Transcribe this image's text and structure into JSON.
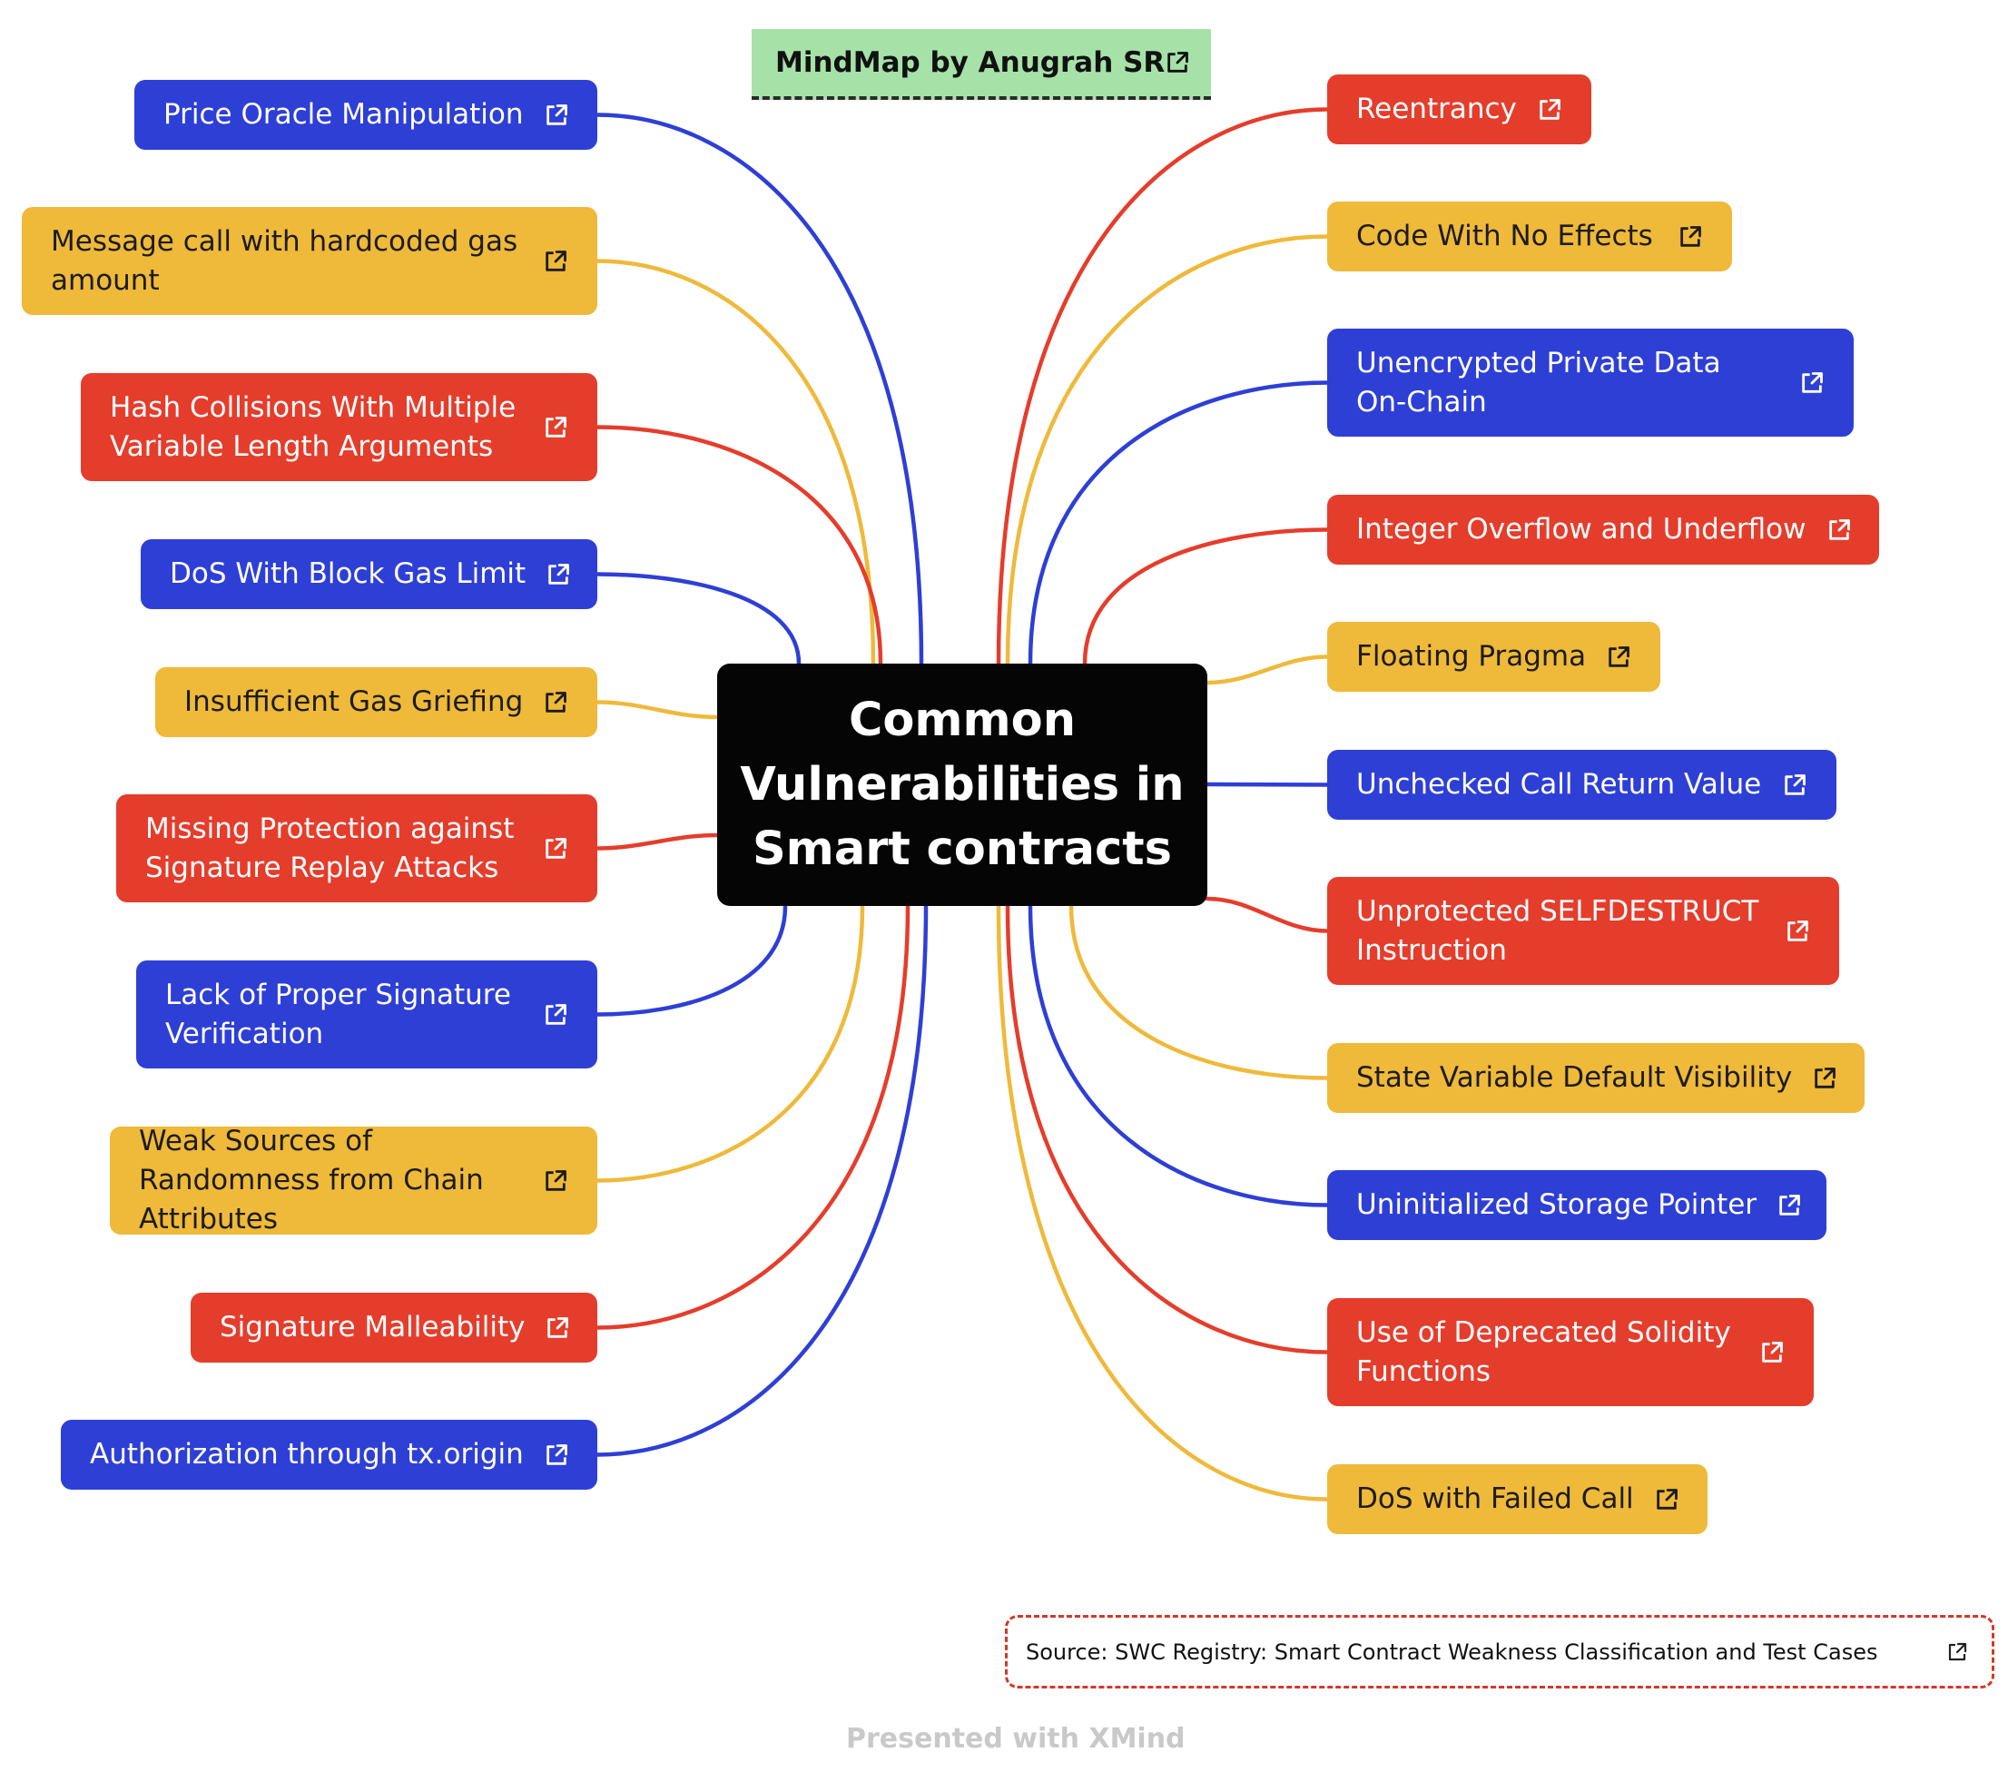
{
  "colors": {
    "blue": "#2e3fd6",
    "red": "#e53d2c",
    "yellow": "#efb93a",
    "center": "#050505",
    "credit_bg": "#a6e2a8"
  },
  "icons": {
    "node_link": "external-link-icon"
  },
  "credit": {
    "label": "MindMap by Anugrah SR"
  },
  "central_topic": {
    "label": "Common Vulnerabilities in Smart contracts"
  },
  "left_nodes": [
    {
      "label": "Price Oracle Manipulation",
      "color": "blue"
    },
    {
      "label": "Message call with hardcoded gas amount",
      "color": "yellow"
    },
    {
      "label": "Hash Collisions With Multiple Variable Length Arguments",
      "color": "red"
    },
    {
      "label": "DoS With Block Gas Limit",
      "color": "blue"
    },
    {
      "label": "Insufficient Gas Griefing",
      "color": "yellow"
    },
    {
      "label": "Missing Protection against Signature Replay Attacks",
      "color": "red"
    },
    {
      "label": "Lack of Proper Signature Verification",
      "color": "blue"
    },
    {
      "label": "Weak Sources of Randomness from Chain Attributes",
      "color": "yellow"
    },
    {
      "label": "Signature Malleability",
      "color": "red"
    },
    {
      "label": "Authorization through tx.origin",
      "color": "blue"
    }
  ],
  "right_nodes": [
    {
      "label": "Reentrancy",
      "color": "red"
    },
    {
      "label": "Code With No Effects",
      "color": "yellow"
    },
    {
      "label": "Unencrypted Private Data On-Chain",
      "color": "blue"
    },
    {
      "label": "Integer Overflow and Underflow",
      "color": "red"
    },
    {
      "label": "Floating Pragma",
      "color": "yellow"
    },
    {
      "label": "Unchecked Call Return Value",
      "color": "blue"
    },
    {
      "label": "Unprotected SELFDESTRUCT Instruction",
      "color": "red"
    },
    {
      "label": "State Variable Default Visibility",
      "color": "yellow"
    },
    {
      "label": "Uninitialized Storage Pointer",
      "color": "blue"
    },
    {
      "label": "Use of Deprecated Solidity Functions",
      "color": "red"
    },
    {
      "label": "DoS with Failed Call",
      "color": "yellow"
    }
  ],
  "source": {
    "label": "Source: SWC Registry: Smart Contract Weakness Classification and Test Cases"
  },
  "footer": {
    "label": "Presented with XMind"
  }
}
